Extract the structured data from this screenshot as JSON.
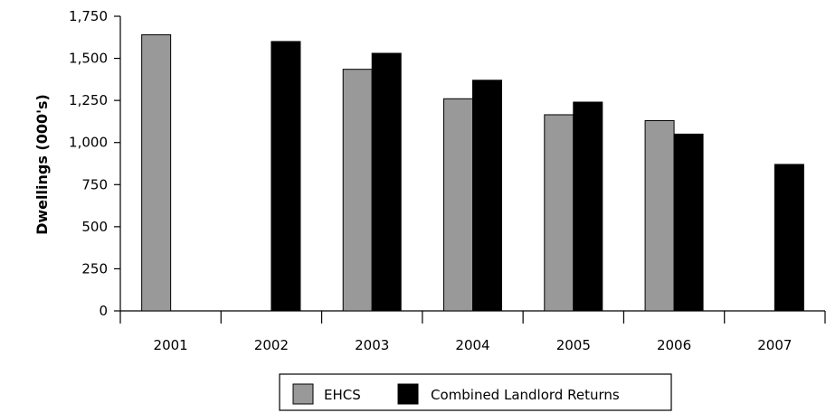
{
  "chart_data": {
    "type": "bar",
    "title": "",
    "xlabel": "",
    "ylabel": "Dwellings (000's)",
    "categories": [
      "2001",
      "2002",
      "2003",
      "2004",
      "2005",
      "2006",
      "2007"
    ],
    "series": [
      {
        "name": "EHCS",
        "color": "#999999",
        "values": [
          1640,
          null,
          1435,
          1260,
          1165,
          1130,
          null
        ]
      },
      {
        "name": "Combined Landlord Returns",
        "color": "#000000",
        "values": [
          null,
          1600,
          1530,
          1370,
          1240,
          1050,
          870
        ]
      }
    ],
    "ylim": [
      0,
      1750
    ],
    "yticks": [
      0,
      250,
      500,
      750,
      1000,
      1250,
      1500,
      1750
    ],
    "ytick_labels": [
      "0",
      "250",
      "500",
      "750",
      "1,000",
      "1,250",
      "1,500",
      "1,750"
    ],
    "grid": false,
    "legend_position": "bottom"
  }
}
